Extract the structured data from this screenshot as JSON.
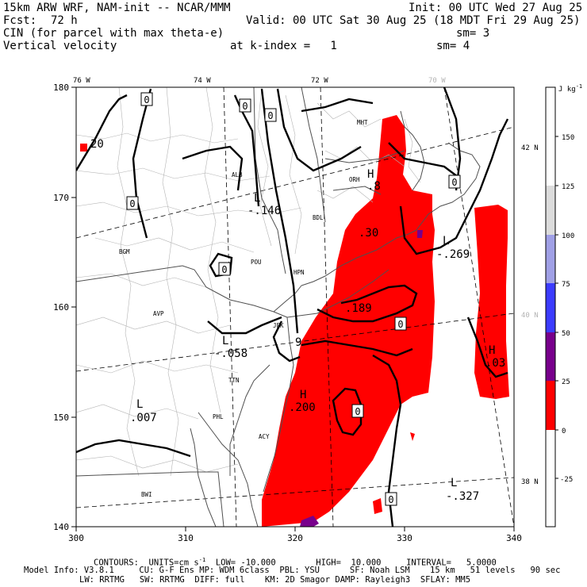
{
  "header": {
    "model": "15km ARW WRF, NAM-init -- NCAR/MMM",
    "init": "Init: 00 UTC Wed 27 Aug 25",
    "fcst_label": "Fcst:",
    "fcst_value": "72 h",
    "valid": "Valid: 00 UTC Sat 30 Aug 25 (18 MDT Fri 29 Aug 25)",
    "field1": "CIN (for parcel with max theta-e)",
    "sm1": "sm= 3",
    "field2": "Vertical velocity",
    "kindex": "at k-index =   1",
    "sm2": "sm= 4"
  },
  "axes": {
    "x_ticks": [
      "300",
      "310",
      "320",
      "330",
      "340"
    ],
    "y_ticks": [
      "180",
      "170",
      "160",
      "150",
      "140"
    ],
    "lon_labels": [
      "76 W",
      "74 W",
      "72 W",
      "70 W"
    ],
    "lat_labels": [
      "42 N",
      "40 N",
      "38 N"
    ]
  },
  "colorbar": {
    "unit": "J kg",
    "unit_exp": "-1",
    "labels": [
      "150",
      "125",
      "100",
      "75",
      "50",
      "25",
      "0",
      "-25"
    ],
    "colors": [
      "#ffffff",
      "#ffffff",
      "#dcdcdc",
      "#a0a0e6",
      "#3c3cff",
      "#78008c",
      "#ff0000",
      "#ffffff",
      "#ffffff"
    ]
  },
  "contour_labels": [
    {
      "text": "0"
    },
    {
      "text": "0"
    },
    {
      "text": "0"
    },
    {
      "text": "0"
    },
    {
      "text": "0"
    },
    {
      "text": "0"
    },
    {
      "text": "0"
    },
    {
      "text": "0"
    },
    {
      "text": "0"
    },
    {
      "text": "L"
    },
    {
      "text": "-.146"
    },
    {
      "text": "L"
    },
    {
      "text": "-.058"
    },
    {
      "text": "L"
    },
    {
      "text": ".007"
    },
    {
      "text": "H"
    },
    {
      "text": ".200"
    },
    {
      "text": "H"
    },
    {
      "text": ".03"
    },
    {
      "text": "L"
    },
    {
      "text": "-.269"
    },
    {
      "text": "L"
    },
    {
      "text": "-.327"
    },
    {
      "text": "H"
    },
    {
      "text": ".8"
    },
    {
      "text": ".30"
    },
    {
      "text": ".189"
    },
    {
      "text": "20"
    },
    {
      "text": "9"
    }
  ],
  "stations": [
    "MHT",
    "ORH",
    "ALB",
    "BDL",
    "BGM",
    "POU",
    "HPN",
    "AVP",
    "JFK",
    "TTN",
    "PHL",
    "ACY",
    "BWI"
  ],
  "footer": {
    "line1": "CONTOURS:  UNITS=cm s",
    "line1_exp": "-1",
    "line1_rest": "  LOW= -10.000        HIGH=  10.000     INTERVAL=   5.0000",
    "line2": "Model Info: V3.8.1     CU: G-F Ens MP: WDM 6class  PBL: YSU      SF: Noah LSM    15 km   51 levels   90 sec",
    "line3": "LW: RRTMG   SW: RRTMG  DIFF: full    KM: 2D Smagor DAMP: Rayleigh3  SFLAY: MM5"
  }
}
